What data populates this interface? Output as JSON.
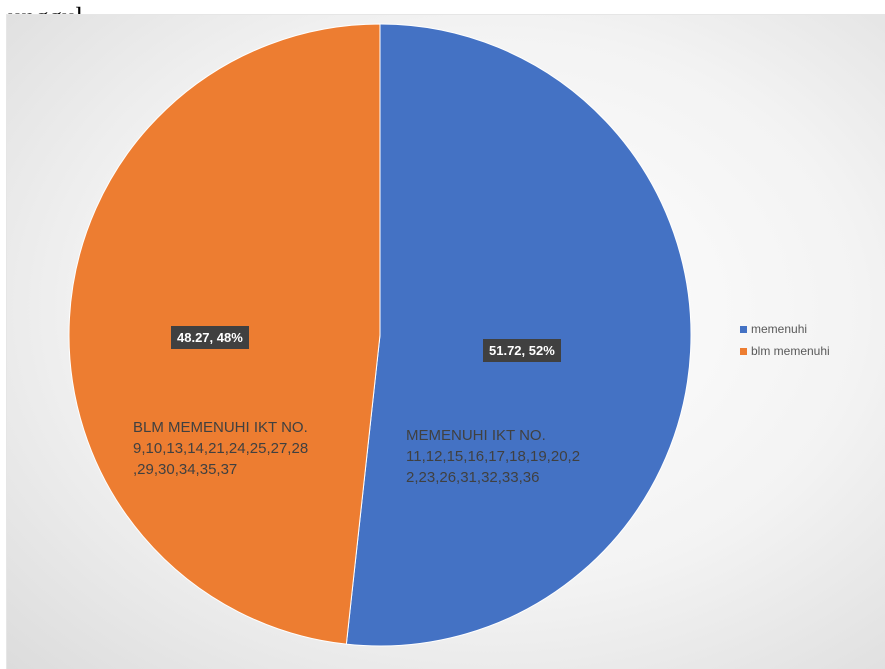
{
  "caption": "unggul.",
  "chart_data": {
    "type": "pie",
    "title": "",
    "categories": [
      "memenuhi",
      "blm memenuhi"
    ],
    "values": [
      51.72,
      48.27
    ],
    "data_labels": [
      "51.72, 52%",
      "48.27, 48%"
    ],
    "slice_notes": [
      "MEMENUHI IKT NO.\n11,12,15,16,17,18,19,20,2\n2,23,26,31,32,33,36",
      "BLM MEMENUHI IKT NO.\n9,10,13,14,21,24,25,27,28\n,29,30,34,35,37"
    ],
    "colors": [
      "#4472c4",
      "#ed7d31"
    ],
    "start_angle": "12 o'clock",
    "direction": "clockwise",
    "legend": {
      "position": "right",
      "entries": [
        "memenuhi",
        "blm memenuhi"
      ]
    }
  }
}
